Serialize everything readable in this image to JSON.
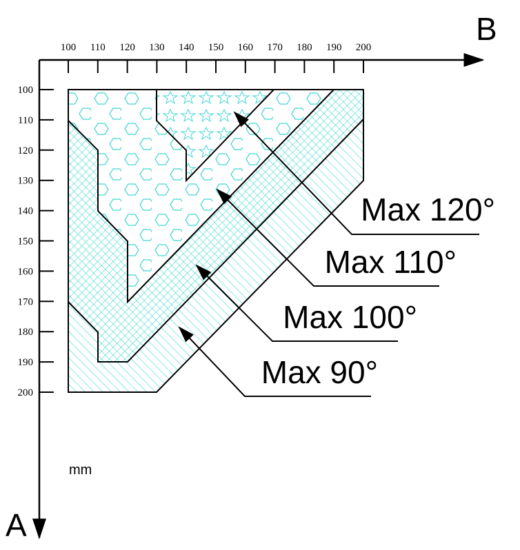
{
  "axes": {
    "x": {
      "label": "B",
      "ticks": [
        100,
        110,
        120,
        130,
        140,
        150,
        160,
        170,
        180,
        190,
        200
      ]
    },
    "y": {
      "label": "A",
      "ticks": [
        100,
        110,
        120,
        130,
        140,
        150,
        160,
        170,
        180,
        190,
        200
      ]
    },
    "unit": "mm"
  },
  "zones": [
    {
      "label": "Max 120°"
    },
    {
      "label": "Max 110°"
    },
    {
      "label": "Max 100°"
    },
    {
      "label": "Max 90°"
    }
  ]
}
